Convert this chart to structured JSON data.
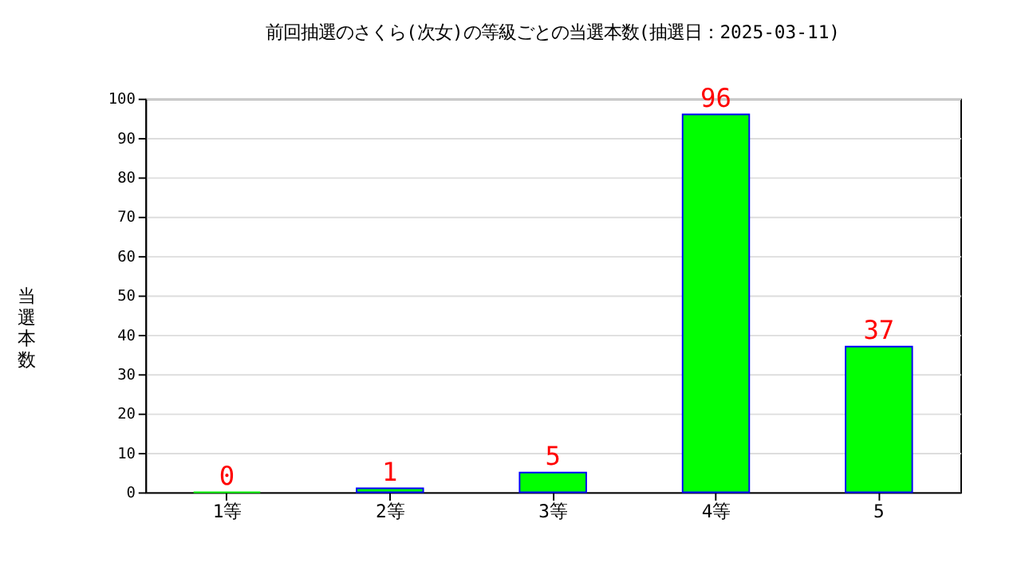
{
  "chart_data": {
    "type": "bar",
    "title": "前回抽選のさくら(次女)の等級ごとの当選本数(抽選日：2025-03-11)",
    "ylabel": "当選本数",
    "categories": [
      "1等",
      "2等",
      "3等",
      "4等",
      "5"
    ],
    "values": [
      0,
      1,
      5,
      96,
      37
    ],
    "color": "#00ff00",
    "ylim": [
      0,
      100
    ],
    "yticks": [
      0,
      10,
      20,
      30,
      40,
      50,
      60,
      70,
      80,
      90,
      100
    ],
    "grid": "y",
    "data_labels": true
  }
}
